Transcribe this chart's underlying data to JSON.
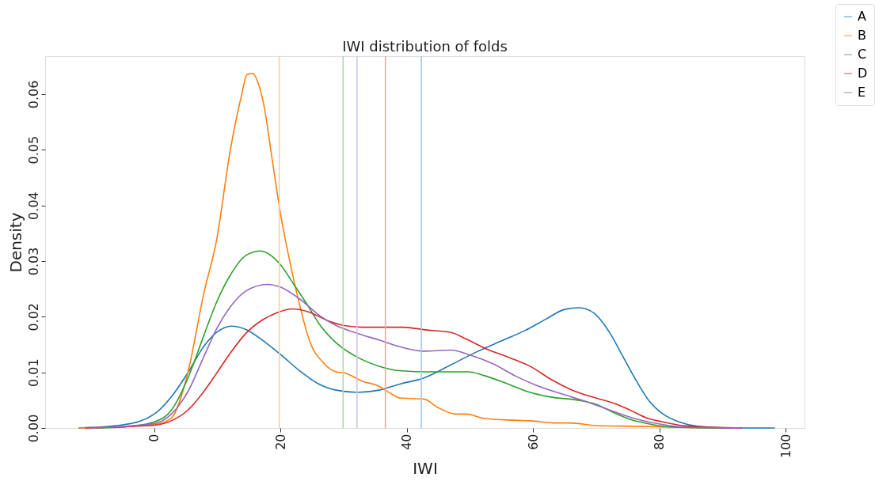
{
  "chart_data": {
    "type": "line",
    "title": "IWI distribution of folds",
    "xlabel": "IWI",
    "ylabel": "Density",
    "xlim": [
      -17.3,
      103
    ],
    "ylim": [
      0,
      0.0668
    ],
    "xticks": [
      0,
      20,
      40,
      60,
      80,
      100
    ],
    "yticks": [
      {
        "value": 0,
        "label": "0.00"
      },
      {
        "value": 0.01,
        "label": "0.01"
      },
      {
        "value": 0.02,
        "label": "0.02"
      },
      {
        "value": 0.03,
        "label": "0.03"
      },
      {
        "value": 0.04,
        "label": "0.04"
      },
      {
        "value": 0.05,
        "label": "0.05"
      },
      {
        "value": 0.06,
        "label": "0.06"
      }
    ],
    "grid": false,
    "legend": "top right",
    "marker": "none",
    "line_style": "solid",
    "series": [
      {
        "name": "A",
        "color": "#1f77b4",
        "x": [
          -12,
          -4.8,
          0,
          2.7,
          5.3,
          7.8,
          9.9,
          12.2,
          14.5,
          17.1,
          20,
          23,
          25.9,
          28.8,
          32.2,
          35.6,
          38.9,
          42.7,
          46.9,
          51.1,
          55.3,
          58.7,
          62.1,
          65,
          67.3,
          69.7,
          72.2,
          74.3,
          76.4,
          78.5,
          80.6,
          83.1,
          86.1,
          91.1,
          98.3
        ],
        "values": [
          0,
          0.0006,
          0.0025,
          0.0056,
          0.0099,
          0.0146,
          0.0172,
          0.0183,
          0.0177,
          0.0158,
          0.0132,
          0.0103,
          0.008,
          0.0068,
          0.0064,
          0.0068,
          0.0079,
          0.009,
          0.0113,
          0.0137,
          0.0158,
          0.0175,
          0.0196,
          0.0213,
          0.0216,
          0.0206,
          0.017,
          0.0127,
          0.0084,
          0.0047,
          0.0025,
          0.0011,
          0.0003,
          0,
          0
        ]
      },
      {
        "name": "B",
        "color": "#ff7f0e",
        "x": [
          -12,
          0,
          2.7,
          5.3,
          7.8,
          9.9,
          12,
          13.7,
          14.7,
          15.6,
          16.4,
          17.3,
          18.7,
          20,
          21.3,
          23,
          24.6,
          26.7,
          28.8,
          30.1,
          33,
          35.6,
          37.3,
          38.9,
          42.7,
          44.9,
          47.8,
          49.4,
          52.3,
          57,
          59.5,
          63.7,
          65.8,
          70.5,
          77.2,
          83.5,
          90
        ],
        "values": [
          0,
          0.0006,
          0.0018,
          0.0099,
          0.024,
          0.034,
          0.0497,
          0.0592,
          0.0635,
          0.0637,
          0.0621,
          0.0583,
          0.048,
          0.0384,
          0.0308,
          0.0222,
          0.0156,
          0.0118,
          0.0101,
          0.0099,
          0.0084,
          0.0075,
          0.0063,
          0.0054,
          0.0052,
          0.0037,
          0.0025,
          0.0025,
          0.0017,
          0.0014,
          0.0013,
          0.0009,
          0.0009,
          0.0004,
          0.0003,
          0.0001,
          0
        ]
      },
      {
        "name": "C",
        "color": "#2ca02c",
        "x": [
          -10,
          -4.8,
          0,
          2.7,
          5.3,
          7.8,
          9.9,
          12,
          14.5,
          16.8,
          18.7,
          20,
          22.1,
          24.2,
          26.3,
          28.8,
          32.2,
          35.6,
          38.9,
          43.2,
          49.7,
          52.3,
          55.8,
          59.2,
          62.6,
          67.6,
          70.1,
          72.7,
          75.2,
          77.7,
          81.9,
          90.3
        ],
        "values": [
          0,
          0.0002,
          0.0011,
          0.0032,
          0.0089,
          0.0165,
          0.0227,
          0.0274,
          0.031,
          0.0318,
          0.0308,
          0.0293,
          0.0258,
          0.0222,
          0.0184,
          0.0153,
          0.0127,
          0.0111,
          0.0103,
          0.0101,
          0.0101,
          0.0094,
          0.008,
          0.0065,
          0.0056,
          0.0049,
          0.0042,
          0.0028,
          0.0016,
          0.0009,
          0.0002,
          0
        ]
      },
      {
        "name": "D",
        "color": "#d62728",
        "x": [
          -11,
          0,
          2.7,
          5.3,
          7.8,
          9.9,
          12,
          14.5,
          17.1,
          19.6,
          21.9,
          24.6,
          27.2,
          30.1,
          33,
          36.4,
          39.3,
          43.2,
          46.9,
          49.4,
          52.8,
          56.1,
          59.5,
          62.9,
          66.2,
          69.6,
          72.9,
          75.4,
          78,
          80.5,
          84.7,
          93.1
        ],
        "values": [
          0,
          0.0005,
          0.0013,
          0.0032,
          0.0065,
          0.0099,
          0.0134,
          0.017,
          0.0194,
          0.0208,
          0.0214,
          0.0208,
          0.0194,
          0.0184,
          0.0181,
          0.0181,
          0.0181,
          0.0176,
          0.0172,
          0.016,
          0.0141,
          0.0127,
          0.0111,
          0.0087,
          0.0068,
          0.0055,
          0.0044,
          0.0032,
          0.0018,
          0.0011,
          0.0003,
          0
        ]
      },
      {
        "name": "E",
        "color": "#9467bd",
        "x": [
          -10,
          0,
          2.7,
          5.3,
          7.8,
          9.9,
          12,
          14.5,
          17.9,
          20,
          23,
          26.3,
          28.8,
          32.2,
          35.6,
          38.9,
          42.7,
          46.9,
          50.3,
          53.7,
          57.1,
          60.4,
          64.6,
          68,
          72.2,
          76.4,
          80.6,
          84.8,
          93
        ],
        "values": [
          0,
          0.0008,
          0.0025,
          0.0065,
          0.0127,
          0.0179,
          0.0217,
          0.0246,
          0.0258,
          0.0253,
          0.0232,
          0.0201,
          0.0184,
          0.017,
          0.0158,
          0.0146,
          0.0138,
          0.014,
          0.013,
          0.0115,
          0.0094,
          0.0077,
          0.0061,
          0.0049,
          0.0032,
          0.0016,
          0.0006,
          0.0001,
          0
        ]
      }
    ],
    "ref_lines": [
      {
        "axis": "x",
        "value": 42.3,
        "color": "#a5c9e1"
      },
      {
        "axis": "x",
        "value": 19.8,
        "color": "#ffcc9f"
      },
      {
        "axis": "x",
        "value": 29.9,
        "color": "#abd9ab"
      },
      {
        "axis": "x",
        "value": 36.6,
        "color": "#efa9a9"
      },
      {
        "axis": "x",
        "value": 32.1,
        "color": "#d4c2e5"
      }
    ]
  }
}
